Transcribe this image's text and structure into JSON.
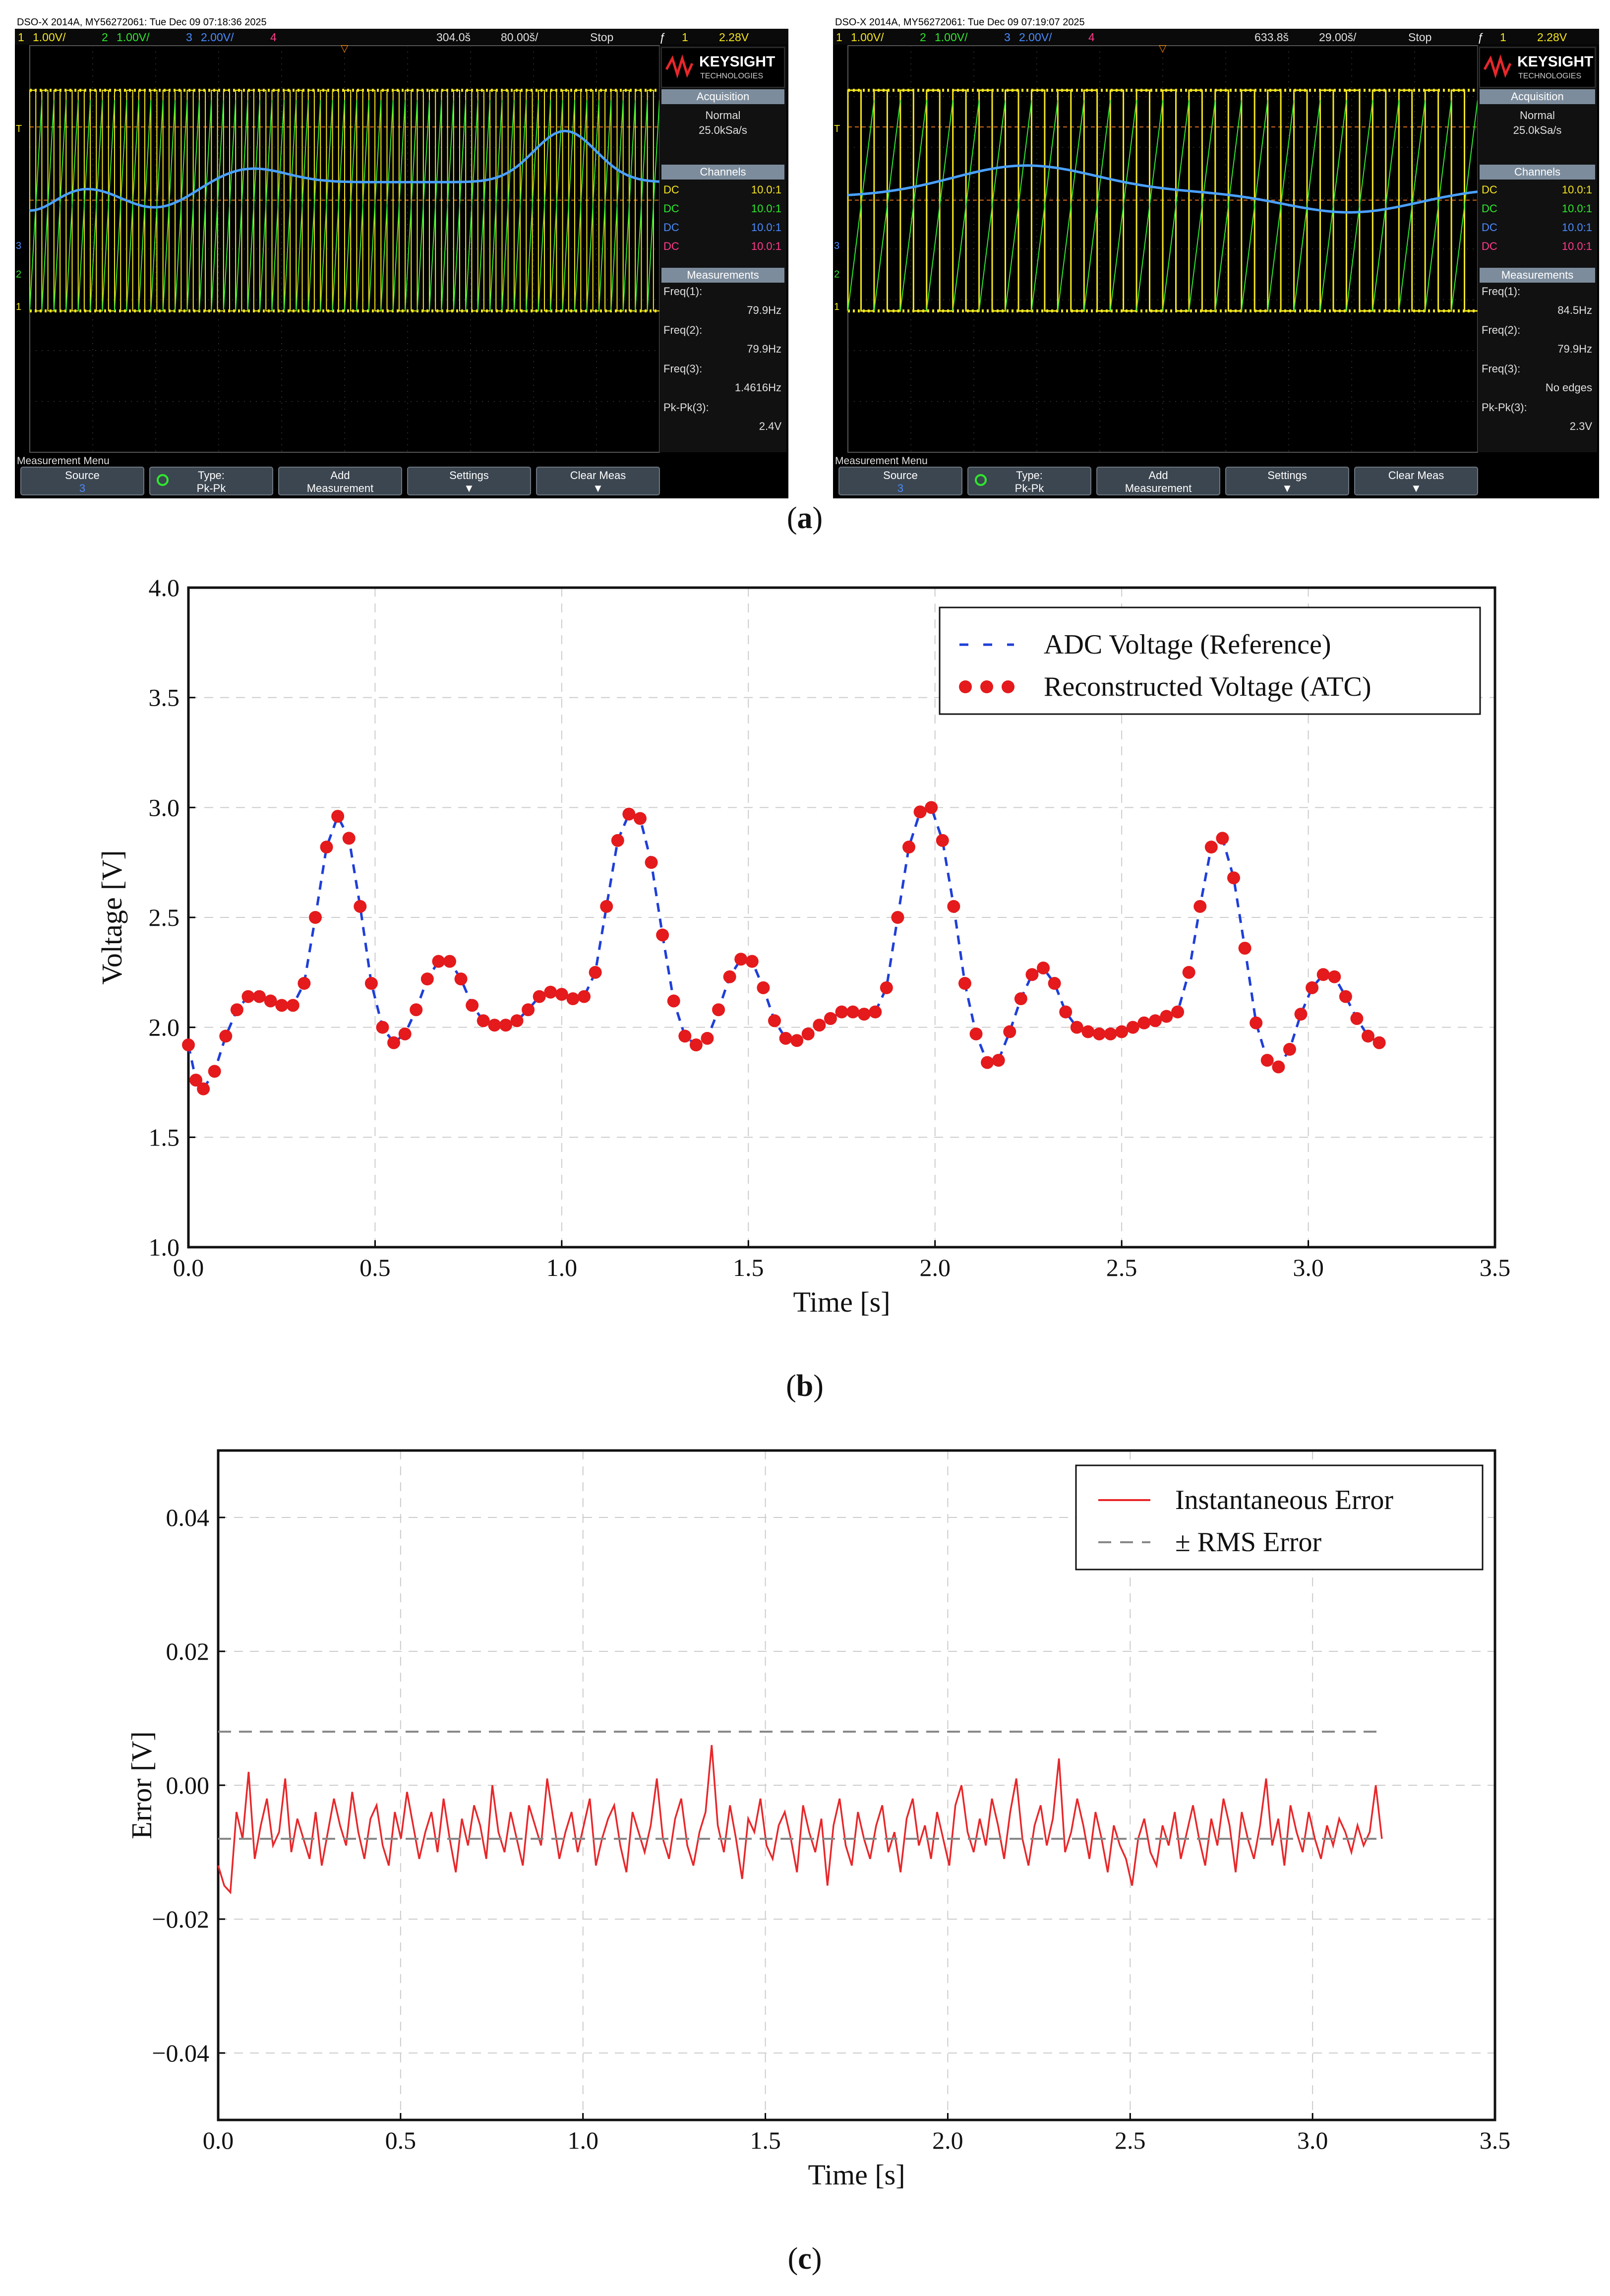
{
  "captions": {
    "a": "a",
    "b": "b",
    "c": "c"
  },
  "scopes": [
    {
      "header": "DSO-X 2014A, MY56272061: Tue Dec 09 07:18:36 2025",
      "channels_bar": [
        "1",
        "1.00V/",
        "2",
        "1.00V/",
        "3",
        "2.00V/",
        "4"
      ],
      "timebase": [
        "304.0š",
        "80.00š/",
        "Stop"
      ],
      "trigger": [
        "ƒ",
        "1",
        "2.28V"
      ],
      "brand": "KEYSIGHT",
      "brand_sub": "TECHNOLOGIES",
      "acq_title": "Acquisition",
      "acq_mode": "Normal",
      "acq_rate": "25.0kSa/s",
      "channels_title": "Channels",
      "channel_rows": [
        {
          "coupling": "DC",
          "ratio": "10.0:1",
          "color": "#f5e61e"
        },
        {
          "coupling": "DC",
          "ratio": "10.0:1",
          "color": "#2ee82e"
        },
        {
          "coupling": "DC",
          "ratio": "10.0:1",
          "color": "#4a8cff"
        },
        {
          "coupling": "DC",
          "ratio": "10.0:1",
          "color": "#ff3c8c"
        }
      ],
      "meas_title": "Measurements",
      "meas": [
        {
          "label": "Freq(1):",
          "value": "79.9Hz"
        },
        {
          "label": "Freq(2):",
          "value": "79.9Hz"
        },
        {
          "label": "Freq(3):",
          "value": "1.4616Hz"
        },
        {
          "label": "Pk-Pk(3):",
          "value": "2.4V"
        }
      ],
      "menu_title": "Measurement Menu",
      "softkeys": [
        {
          "label": "Source",
          "sub": "3"
        },
        {
          "label": "Type:",
          "sub": "Pk-Pk"
        },
        {
          "label": "Add",
          "sub": "Measurement"
        },
        {
          "label": "Settings",
          "sub": "▼"
        },
        {
          "label": "Clear Meas",
          "sub": "▼"
        }
      ]
    },
    {
      "header": "DSO-X 2014A, MY56272061: Tue Dec 09 07:19:07 2025",
      "channels_bar": [
        "1",
        "1.00V/",
        "2",
        "1.00V/",
        "3",
        "2.00V/",
        "4"
      ],
      "timebase": [
        "633.8š",
        "29.00š/",
        "Stop"
      ],
      "trigger": [
        "ƒ",
        "1",
        "2.28V"
      ],
      "brand": "KEYSIGHT",
      "brand_sub": "TECHNOLOGIES",
      "acq_title": "Acquisition",
      "acq_mode": "Normal",
      "acq_rate": "25.0kSa/s",
      "channels_title": "Channels",
      "channel_rows": [
        {
          "coupling": "DC",
          "ratio": "10.0:1",
          "color": "#f5e61e"
        },
        {
          "coupling": "DC",
          "ratio": "10.0:1",
          "color": "#2ee82e"
        },
        {
          "coupling": "DC",
          "ratio": "10.0:1",
          "color": "#4a8cff"
        },
        {
          "coupling": "DC",
          "ratio": "10.0:1",
          "color": "#ff3c8c"
        }
      ],
      "meas_title": "Measurements",
      "meas": [
        {
          "label": "Freq(1):",
          "value": "84.5Hz"
        },
        {
          "label": "Freq(2):",
          "value": "79.9Hz"
        },
        {
          "label": "Freq(3):",
          "value": "No edges"
        },
        {
          "label": "Pk-Pk(3):",
          "value": "2.3V"
        }
      ],
      "menu_title": "Measurement Menu",
      "softkeys": [
        {
          "label": "Source",
          "sub": "3"
        },
        {
          "label": "Type:",
          "sub": "Pk-Pk"
        },
        {
          "label": "Add",
          "sub": "Measurement"
        },
        {
          "label": "Settings",
          "sub": "▼"
        },
        {
          "label": "Clear Meas",
          "sub": "▼"
        }
      ]
    }
  ],
  "chart_data": [
    {
      "type": "scatter",
      "title": "",
      "xlabel": "Time [s]",
      "ylabel": "Voltage [V]",
      "xlim": [
        0.0,
        3.5
      ],
      "ylim": [
        1.0,
        4.0
      ],
      "xticks": [
        "0.0",
        "0.5",
        "1.0",
        "1.5",
        "2.0",
        "2.5",
        "3.0",
        "3.5"
      ],
      "yticks": [
        "1.0",
        "1.5",
        "2.0",
        "2.5",
        "3.0",
        "3.5",
        "4.0"
      ],
      "grid": true,
      "legend_position": "top-right",
      "series": [
        {
          "name": "ADC Voltage (Reference)",
          "style": "dashed-line",
          "color": "#1f3fd8"
        },
        {
          "name": "Reconstructed Voltage (ATC)",
          "style": "dots",
          "color": "#e41a1c"
        }
      ],
      "curve_points": [
        [
          0.0,
          1.92
        ],
        [
          0.02,
          1.76
        ],
        [
          0.04,
          1.72
        ],
        [
          0.07,
          1.8
        ],
        [
          0.1,
          1.96
        ],
        [
          0.13,
          2.08
        ],
        [
          0.16,
          2.14
        ],
        [
          0.19,
          2.14
        ],
        [
          0.22,
          2.12
        ],
        [
          0.25,
          2.1
        ],
        [
          0.28,
          2.1
        ],
        [
          0.31,
          2.2
        ],
        [
          0.34,
          2.5
        ],
        [
          0.37,
          2.82
        ],
        [
          0.4,
          2.96
        ],
        [
          0.43,
          2.86
        ],
        [
          0.46,
          2.55
        ],
        [
          0.49,
          2.2
        ],
        [
          0.52,
          2.0
        ],
        [
          0.55,
          1.93
        ],
        [
          0.58,
          1.97
        ],
        [
          0.61,
          2.08
        ],
        [
          0.64,
          2.22
        ],
        [
          0.67,
          2.3
        ],
        [
          0.7,
          2.3
        ],
        [
          0.73,
          2.22
        ],
        [
          0.76,
          2.1
        ],
        [
          0.79,
          2.03
        ],
        [
          0.82,
          2.01
        ],
        [
          0.85,
          2.01
        ],
        [
          0.88,
          2.03
        ],
        [
          0.91,
          2.08
        ],
        [
          0.94,
          2.14
        ],
        [
          0.97,
          2.16
        ],
        [
          1.0,
          2.15
        ],
        [
          1.03,
          2.13
        ],
        [
          1.06,
          2.14
        ],
        [
          1.09,
          2.25
        ],
        [
          1.12,
          2.55
        ],
        [
          1.15,
          2.85
        ],
        [
          1.18,
          2.97
        ],
        [
          1.21,
          2.95
        ],
        [
          1.24,
          2.75
        ],
        [
          1.27,
          2.42
        ],
        [
          1.3,
          2.12
        ],
        [
          1.33,
          1.96
        ],
        [
          1.36,
          1.92
        ],
        [
          1.39,
          1.95
        ],
        [
          1.42,
          2.08
        ],
        [
          1.45,
          2.23
        ],
        [
          1.48,
          2.31
        ],
        [
          1.51,
          2.3
        ],
        [
          1.54,
          2.18
        ],
        [
          1.57,
          2.03
        ],
        [
          1.6,
          1.95
        ],
        [
          1.63,
          1.94
        ],
        [
          1.66,
          1.97
        ],
        [
          1.69,
          2.01
        ],
        [
          1.72,
          2.04
        ],
        [
          1.75,
          2.07
        ],
        [
          1.78,
          2.07
        ],
        [
          1.81,
          2.06
        ],
        [
          1.84,
          2.07
        ],
        [
          1.87,
          2.18
        ],
        [
          1.9,
          2.5
        ],
        [
          1.93,
          2.82
        ],
        [
          1.96,
          2.98
        ],
        [
          1.99,
          3.0
        ],
        [
          2.02,
          2.85
        ],
        [
          2.05,
          2.55
        ],
        [
          2.08,
          2.2
        ],
        [
          2.11,
          1.97
        ],
        [
          2.14,
          1.84
        ],
        [
          2.17,
          1.85
        ],
        [
          2.2,
          1.98
        ],
        [
          2.23,
          2.13
        ],
        [
          2.26,
          2.24
        ],
        [
          2.29,
          2.27
        ],
        [
          2.32,
          2.2
        ],
        [
          2.35,
          2.07
        ],
        [
          2.38,
          2.0
        ],
        [
          2.41,
          1.98
        ],
        [
          2.44,
          1.97
        ],
        [
          2.47,
          1.97
        ],
        [
          2.5,
          1.98
        ],
        [
          2.53,
          2.0
        ],
        [
          2.56,
          2.02
        ],
        [
          2.59,
          2.03
        ],
        [
          2.62,
          2.05
        ],
        [
          2.65,
          2.07
        ],
        [
          2.68,
          2.25
        ],
        [
          2.71,
          2.55
        ],
        [
          2.74,
          2.82
        ],
        [
          2.77,
          2.86
        ],
        [
          2.8,
          2.68
        ],
        [
          2.83,
          2.36
        ],
        [
          2.86,
          2.02
        ],
        [
          2.89,
          1.85
        ],
        [
          2.92,
          1.82
        ],
        [
          2.95,
          1.9
        ],
        [
          2.98,
          2.06
        ],
        [
          3.01,
          2.18
        ],
        [
          3.04,
          2.24
        ],
        [
          3.07,
          2.23
        ],
        [
          3.1,
          2.14
        ],
        [
          3.13,
          2.04
        ],
        [
          3.16,
          1.96
        ],
        [
          3.19,
          1.93
        ]
      ]
    },
    {
      "type": "line",
      "title": "",
      "xlabel": "Time [s]",
      "ylabel": "Error [V]",
      "xlim": [
        0.0,
        3.5
      ],
      "ylim": [
        -0.05,
        0.05
      ],
      "xticks": [
        "0.0",
        "0.5",
        "1.0",
        "1.5",
        "2.0",
        "2.5",
        "3.0",
        "3.5"
      ],
      "yticks": [
        "−0.04",
        "−0.02",
        "0.00",
        "0.02",
        "0.04"
      ],
      "ytick_values": [
        -0.04,
        -0.02,
        0.0,
        0.02,
        0.04
      ],
      "grid": true,
      "legend_position": "top-right",
      "series": [
        {
          "name": "Instantaneous Error",
          "style": "solid-line",
          "color": "#e8272a"
        },
        {
          "name": "± RMS Error",
          "style": "dashed-line",
          "color": "#888888"
        }
      ],
      "rms": 0.008,
      "t_start": 0.0,
      "t_end": 3.19,
      "error_values": [
        -0.012,
        -0.015,
        -0.016,
        -0.004,
        -0.008,
        0.002,
        -0.011,
        -0.006,
        -0.002,
        -0.009,
        -0.007,
        0.001,
        -0.01,
        -0.005,
        -0.008,
        -0.011,
        -0.004,
        -0.012,
        -0.007,
        -0.002,
        -0.006,
        -0.009,
        -0.001,
        -0.007,
        -0.011,
        -0.005,
        -0.003,
        -0.009,
        -0.012,
        -0.004,
        -0.008,
        -0.001,
        -0.006,
        -0.011,
        -0.007,
        -0.004,
        -0.01,
        -0.002,
        -0.008,
        -0.013,
        -0.005,
        -0.009,
        -0.003,
        -0.006,
        -0.011,
        0.0,
        -0.007,
        -0.01,
        -0.004,
        -0.008,
        -0.012,
        -0.003,
        -0.006,
        -0.009,
        0.001,
        -0.005,
        -0.011,
        -0.007,
        -0.004,
        -0.01,
        -0.006,
        -0.002,
        -0.012,
        -0.008,
        -0.005,
        -0.003,
        -0.009,
        -0.013,
        -0.004,
        -0.007,
        -0.01,
        -0.006,
        0.001,
        -0.008,
        -0.011,
        -0.005,
        -0.002,
        -0.009,
        -0.012,
        -0.007,
        -0.004,
        0.006,
        -0.006,
        -0.01,
        -0.003,
        -0.008,
        -0.014,
        -0.005,
        -0.007,
        -0.002,
        -0.009,
        -0.011,
        -0.006,
        -0.004,
        -0.008,
        -0.013,
        -0.003,
        -0.007,
        -0.01,
        -0.005,
        -0.015,
        -0.006,
        -0.002,
        -0.009,
        -0.012,
        -0.004,
        -0.008,
        -0.011,
        -0.006,
        -0.003,
        -0.01,
        -0.007,
        -0.013,
        -0.005,
        -0.002,
        -0.009,
        -0.006,
        -0.011,
        -0.004,
        -0.008,
        -0.012,
        -0.003,
        0.0,
        -0.007,
        -0.01,
        -0.005,
        -0.009,
        -0.002,
        -0.006,
        -0.011,
        -0.004,
        0.001,
        -0.008,
        -0.012,
        -0.006,
        -0.003,
        -0.009,
        -0.005,
        0.004,
        -0.01,
        -0.007,
        -0.002,
        -0.006,
        -0.011,
        -0.004,
        -0.008,
        -0.013,
        -0.006,
        -0.009,
        -0.011,
        -0.015,
        -0.008,
        -0.005,
        -0.01,
        -0.012,
        -0.006,
        -0.009,
        -0.004,
        -0.011,
        -0.007,
        -0.003,
        -0.008,
        -0.012,
        -0.005,
        -0.009,
        -0.002,
        -0.006,
        -0.013,
        -0.004,
        -0.008,
        -0.011,
        -0.006,
        0.001,
        -0.009,
        -0.005,
        -0.012,
        -0.003,
        -0.007,
        -0.01,
        -0.004,
        -0.008,
        -0.011,
        -0.006,
        -0.009,
        -0.005,
        -0.007,
        -0.01,
        -0.006,
        -0.009,
        -0.007,
        0.0,
        -0.008
      ]
    }
  ]
}
